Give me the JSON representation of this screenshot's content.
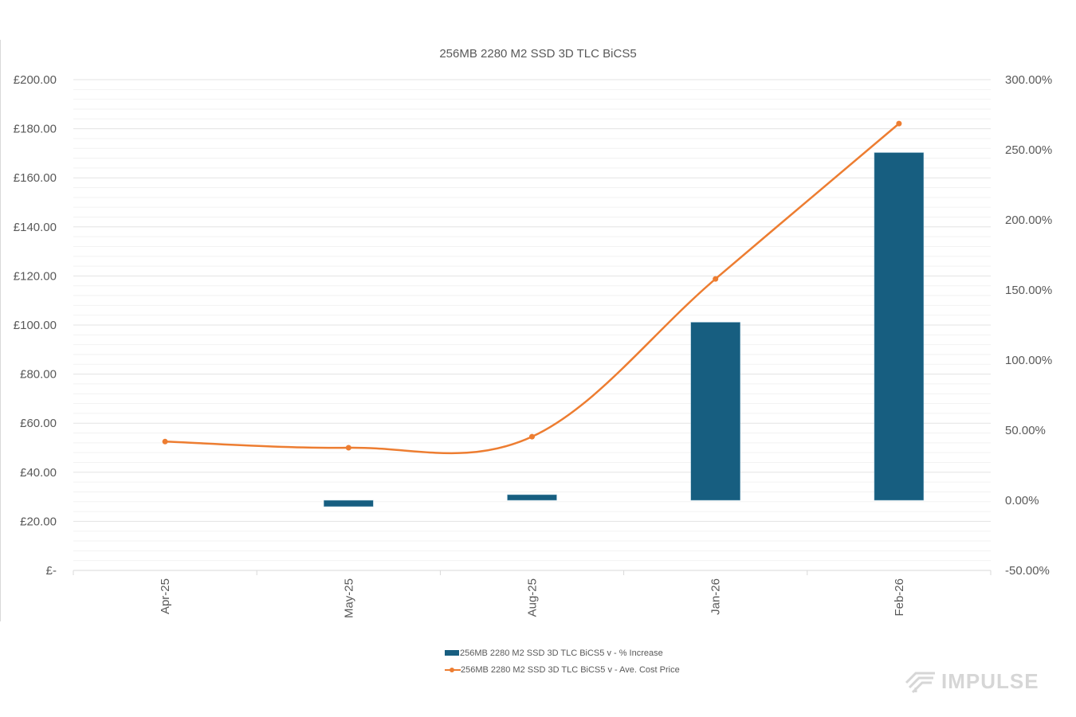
{
  "chart_data": {
    "type": "bar+line",
    "title": "256MB 2280 M2 SSD 3D TLC BiCS5",
    "categories": [
      "Apr-25",
      "May-25",
      "Aug-25",
      "Jan-26",
      "Feb-26"
    ],
    "series": [
      {
        "name": "256MB 2280 M2 SSD 3D TLC BiCS5 v - % Increase",
        "type": "bar",
        "axis": "right",
        "color": "#175e80",
        "values": [
          null,
          -4.5,
          4.0,
          127.0,
          248.0
        ]
      },
      {
        "name": "256MB 2280 M2 SSD 3D TLC BiCS5 v - Ave. Cost Price",
        "type": "line",
        "axis": "left",
        "color": "#ed7d31",
        "smooth": true,
        "values": [
          52.5,
          50.0,
          54.5,
          118.8,
          182.1
        ]
      }
    ],
    "xlabel": "",
    "ylabel_left": "",
    "ylabel_right": "",
    "ylim_left": [
      0,
      200
    ],
    "ylim_right": [
      -50,
      300
    ],
    "left_ticks": [
      "£-",
      "£20.00",
      "£40.00",
      "£60.00",
      "£80.00",
      "£100.00",
      "£120.00",
      "£140.00",
      "£160.00",
      "£180.00",
      "£200.00"
    ],
    "right_ticks": [
      "-50.00%",
      "0.00%",
      "50.00%",
      "100.00%",
      "150.00%",
      "200.00%",
      "250.00%",
      "300.00%"
    ],
    "grid": true,
    "legend_position": "bottom"
  },
  "title": "256MB 2280 M2 SSD 3D TLC BiCS5",
  "legend": {
    "bar_label": "256MB 2280 M2 SSD 3D TLC BiCS5 v - % Increase",
    "line_label": "256MB 2280 M2 SSD 3D TLC BiCS5 v - Ave. Cost Price"
  },
  "branding": {
    "logo_text": "IMPULSE",
    "logo_icon": "stripes-chevron-icon"
  },
  "colors": {
    "bar": "#175e80",
    "line": "#ed7d31",
    "grid_major": "#e3e3e3",
    "grid_minor": "#f2f2f2",
    "text": "#595959",
    "logo": "#d6d6d6"
  }
}
